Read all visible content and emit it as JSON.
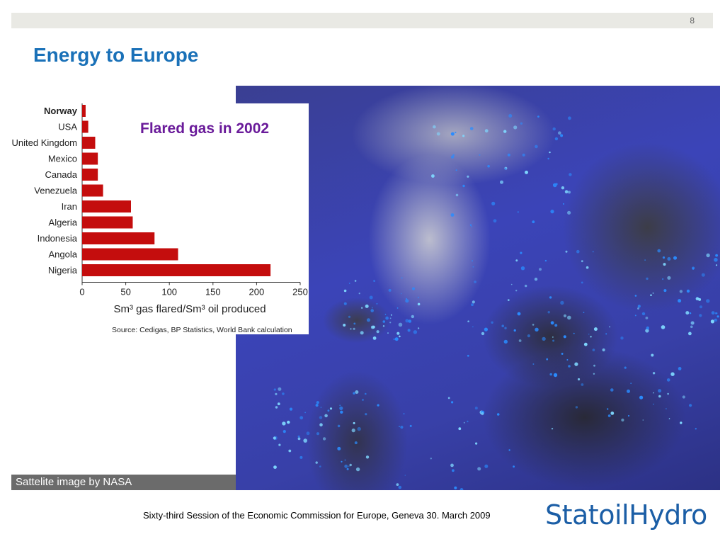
{
  "slide": {
    "page_number": "8",
    "title": "Energy to Europe",
    "caption": "Sattelite image by NASA",
    "footer": "Sixty-third Session of the Economic Commission for Europe, Geneva 30. March 2009",
    "logo_text": "StatoilHydro"
  },
  "colors": {
    "title": "#1a71b8",
    "bar": "#c40d0d",
    "annotation": "#6a1b9a",
    "logo": "#1b5ea6",
    "topbar": "#e9e9e4"
  },
  "chart_data": {
    "type": "bar",
    "orientation": "horizontal",
    "title": "Flared gas in 2002",
    "categories": [
      "Norway",
      "USA",
      "United Kingdom",
      "Mexico",
      "Canada",
      "Venezuela",
      "Iran",
      "Algeria",
      "Indonesia",
      "Angola",
      "Nigeria"
    ],
    "values": [
      4,
      7,
      15,
      18,
      18,
      24,
      56,
      58,
      83,
      110,
      216
    ],
    "highlighted_category": "Norway",
    "xlabel": "Sm³ gas flared/Sm³ oil produced",
    "ylabel": "",
    "xlim": [
      0,
      250
    ],
    "xticks": [
      "0",
      "50",
      "100",
      "150",
      "200",
      "250"
    ],
    "source": "Source: Cedigas, BP Statistics, World Bank calculation",
    "grid": false,
    "legend": "none"
  }
}
